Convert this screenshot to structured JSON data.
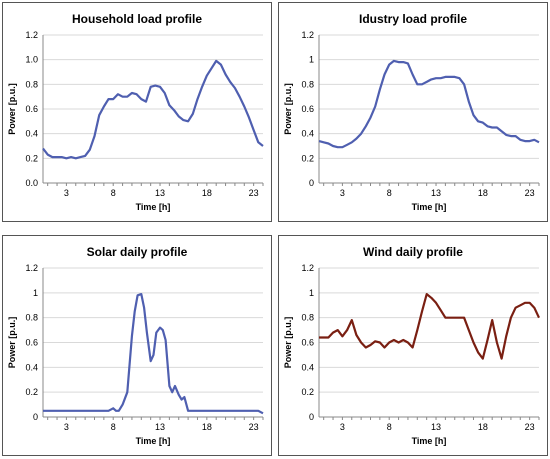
{
  "chart_data": [
    {
      "type": "line",
      "title": "Household load profile",
      "xlabel": "Time [h]",
      "ylabel": "Power [p.u.]",
      "ylim": [
        0,
        1.2
      ],
      "yticks": [
        "0.0",
        "0.2",
        "0.4",
        "0.6",
        "0.8",
        "1.0",
        "1.2"
      ],
      "xlim": [
        0.5,
        24
      ],
      "xticks": [
        3,
        8,
        13,
        18,
        23
      ],
      "grid": true,
      "line_color": "#4f5fb0",
      "series": [
        {
          "x": [
            0.5,
            1,
            1.5,
            2,
            2.5,
            3,
            3.5,
            4,
            4.5,
            5,
            5.5,
            6,
            6.5,
            7,
            7.5,
            8,
            8.5,
            9,
            9.5,
            10,
            10.5,
            11,
            11.5,
            12,
            12.5,
            13,
            13.5,
            14,
            14.5,
            15,
            15.5,
            16,
            16.5,
            17,
            17.5,
            18,
            18.5,
            19,
            19.5,
            20,
            20.5,
            21,
            21.5,
            22,
            22.5,
            23,
            23.5,
            24
          ],
          "y": [
            0.28,
            0.23,
            0.21,
            0.21,
            0.21,
            0.2,
            0.21,
            0.2,
            0.21,
            0.22,
            0.27,
            0.38,
            0.55,
            0.62,
            0.68,
            0.68,
            0.72,
            0.7,
            0.7,
            0.73,
            0.72,
            0.68,
            0.66,
            0.78,
            0.79,
            0.78,
            0.73,
            0.63,
            0.59,
            0.54,
            0.51,
            0.5,
            0.56,
            0.68,
            0.78,
            0.87,
            0.93,
            0.99,
            0.96,
            0.88,
            0.82,
            0.77,
            0.7,
            0.62,
            0.53,
            0.43,
            0.33,
            0.3
          ]
        }
      ]
    },
    {
      "type": "line",
      "title": "Idustry load profile",
      "xlabel": "Time [h]",
      "ylabel": "Power [p.u.]",
      "ylim": [
        0,
        1.2
      ],
      "yticks": [
        "0",
        "0.2",
        "0.4",
        "0.6",
        "0.8",
        "1",
        "1.2"
      ],
      "xlim": [
        0.5,
        24
      ],
      "xticks": [
        3,
        8,
        13,
        18,
        23
      ],
      "grid": true,
      "line_color": "#4f5fb0",
      "series": [
        {
          "x": [
            0.5,
            1,
            1.5,
            2,
            2.5,
            3,
            3.5,
            4,
            4.5,
            5,
            5.5,
            6,
            6.5,
            7,
            7.5,
            8,
            8.5,
            9,
            9.5,
            10,
            10.5,
            11,
            11.5,
            12,
            12.5,
            13,
            13.5,
            14,
            14.5,
            15,
            15.5,
            16,
            16.5,
            17,
            17.5,
            18,
            18.5,
            19,
            19.5,
            20,
            20.5,
            21,
            21.5,
            22,
            22.5,
            23,
            23.5,
            24
          ],
          "y": [
            0.34,
            0.33,
            0.32,
            0.3,
            0.29,
            0.29,
            0.31,
            0.33,
            0.36,
            0.4,
            0.46,
            0.53,
            0.62,
            0.76,
            0.88,
            0.96,
            0.99,
            0.98,
            0.98,
            0.97,
            0.88,
            0.8,
            0.8,
            0.82,
            0.84,
            0.85,
            0.85,
            0.86,
            0.86,
            0.86,
            0.85,
            0.8,
            0.66,
            0.55,
            0.5,
            0.49,
            0.46,
            0.45,
            0.45,
            0.42,
            0.39,
            0.38,
            0.38,
            0.35,
            0.34,
            0.34,
            0.35,
            0.33
          ]
        }
      ]
    },
    {
      "type": "line",
      "title": "Solar daily profile",
      "xlabel": "Time [h]",
      "ylabel": "Power [p.u.]",
      "ylim": [
        0,
        1.2
      ],
      "yticks": [
        "0",
        "0.2",
        "0.4",
        "0.6",
        "0.8",
        "1",
        "1.2"
      ],
      "xlim": [
        0.5,
        24
      ],
      "xticks": [
        3,
        8,
        13,
        18,
        23
      ],
      "grid": true,
      "line_color": "#4f5fb0",
      "series": [
        {
          "x": [
            0.5,
            1,
            2,
            3,
            4,
            5,
            6,
            7,
            7.5,
            8,
            8.3,
            8.6,
            9,
            9.5,
            10,
            10.3,
            10.6,
            11,
            11.3,
            11.6,
            12,
            12.3,
            12.6,
            13,
            13.3,
            13.6,
            14,
            14.3,
            14.6,
            15,
            15.3,
            15.6,
            16,
            17,
            18,
            19,
            20,
            21,
            22,
            23,
            23.5,
            24
          ],
          "y": [
            0.05,
            0.05,
            0.05,
            0.05,
            0.05,
            0.05,
            0.05,
            0.05,
            0.05,
            0.07,
            0.05,
            0.05,
            0.1,
            0.2,
            0.65,
            0.85,
            0.98,
            0.99,
            0.88,
            0.68,
            0.45,
            0.5,
            0.68,
            0.72,
            0.7,
            0.62,
            0.25,
            0.2,
            0.25,
            0.18,
            0.14,
            0.16,
            0.05,
            0.05,
            0.05,
            0.05,
            0.05,
            0.05,
            0.05,
            0.05,
            0.05,
            0.03
          ]
        }
      ]
    },
    {
      "type": "line",
      "title": "Wind daily profile",
      "xlabel": "Time [h]",
      "ylabel": "Power [p.u.]",
      "ylim": [
        0,
        1.2
      ],
      "yticks": [
        "0",
        "0.2",
        "0.4",
        "0.6",
        "0.8",
        "1",
        "1.2"
      ],
      "xlim": [
        0.5,
        24
      ],
      "xticks": [
        3,
        8,
        13,
        18,
        23
      ],
      "grid": true,
      "line_color": "#7a1f12",
      "series": [
        {
          "x": [
            0.5,
            1,
            1.5,
            2,
            2.5,
            3,
            3.5,
            4,
            4.5,
            5,
            5.5,
            6,
            6.5,
            7,
            7.5,
            8,
            8.5,
            9,
            9.5,
            10,
            10.5,
            11,
            11.5,
            12,
            12.5,
            13,
            13.5,
            14,
            14.5,
            15,
            15.5,
            16,
            16.5,
            17,
            17.5,
            18,
            18.5,
            19,
            19.5,
            20,
            20.5,
            21,
            21.5,
            22,
            22.5,
            23,
            23.5,
            24
          ],
          "y": [
            0.64,
            0.64,
            0.64,
            0.68,
            0.7,
            0.65,
            0.7,
            0.78,
            0.66,
            0.6,
            0.56,
            0.58,
            0.61,
            0.6,
            0.56,
            0.6,
            0.62,
            0.6,
            0.62,
            0.6,
            0.56,
            0.7,
            0.85,
            0.99,
            0.96,
            0.92,
            0.86,
            0.8,
            0.8,
            0.8,
            0.8,
            0.8,
            0.7,
            0.6,
            0.52,
            0.47,
            0.62,
            0.78,
            0.6,
            0.47,
            0.65,
            0.8,
            0.88,
            0.9,
            0.92,
            0.92,
            0.88,
            0.8
          ]
        }
      ]
    }
  ]
}
